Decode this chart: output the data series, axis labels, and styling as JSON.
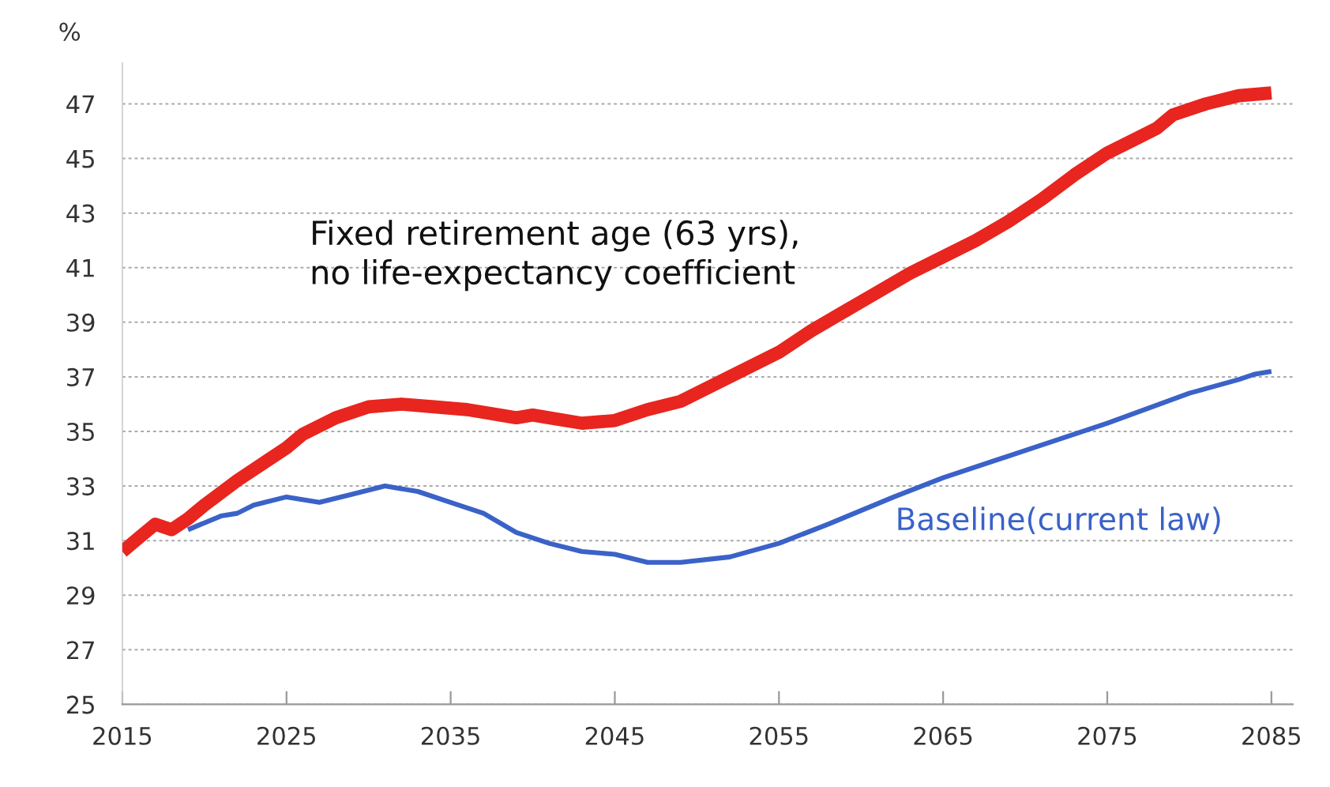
{
  "chart_data": {
    "type": "line",
    "ylabel": "%",
    "series": [
      {
        "name": "Fixed retirement age (63 yrs),\nno life-expectancy coefficient",
        "color": "#e8251f",
        "x": [
          2015,
          2016,
          2017,
          2018,
          2019,
          2020,
          2022,
          2024,
          2025,
          2026,
          2028,
          2030,
          2032,
          2034,
          2036,
          2038,
          2039,
          2040,
          2041,
          2043,
          2045,
          2047,
          2049,
          2051,
          2053,
          2055,
          2057,
          2059,
          2061,
          2063,
          2065,
          2067,
          2069,
          2071,
          2073,
          2075,
          2077,
          2078,
          2079,
          2081,
          2083,
          2085
        ],
        "values": [
          30.6,
          31.1,
          31.6,
          31.4,
          31.8,
          32.3,
          33.2,
          34.0,
          34.4,
          34.9,
          35.5,
          35.9,
          36.0,
          35.9,
          35.8,
          35.6,
          35.5,
          35.6,
          35.5,
          35.3,
          35.4,
          35.8,
          36.1,
          36.7,
          37.3,
          37.9,
          38.7,
          39.4,
          40.1,
          40.8,
          41.4,
          42.0,
          42.7,
          43.5,
          44.4,
          45.2,
          45.8,
          46.1,
          46.6,
          47.0,
          47.3,
          47.4
        ]
      },
      {
        "name": "Baseline(current law)",
        "color": "#3a62c8",
        "x": [
          2019,
          2021,
          2022,
          2023,
          2025,
          2027,
          2029,
          2031,
          2033,
          2035,
          2037,
          2039,
          2041,
          2043,
          2045,
          2047,
          2049,
          2052,
          2055,
          2058,
          2062,
          2065,
          2070,
          2075,
          2080,
          2083,
          2084,
          2085
        ],
        "values": [
          31.4,
          31.9,
          32.0,
          32.3,
          32.6,
          32.4,
          32.7,
          33.0,
          32.8,
          32.4,
          32.0,
          31.3,
          30.9,
          30.6,
          30.5,
          30.2,
          30.2,
          30.4,
          30.9,
          31.6,
          32.6,
          33.3,
          34.3,
          35.3,
          36.4,
          36.9,
          37.1,
          37.2
        ]
      }
    ],
    "xlim": [
      2015,
      2086.3
    ],
    "xticks": [
      2015,
      2025,
      2035,
      2045,
      2055,
      2065,
      2075,
      2085
    ],
    "ylim": [
      25,
      48.5
    ],
    "yticks": [
      25,
      27,
      29,
      31,
      33,
      35,
      37,
      39,
      41,
      43,
      45,
      47
    ],
    "grid": "y",
    "legend": false,
    "line_style": "solid",
    "marker": "none"
  }
}
